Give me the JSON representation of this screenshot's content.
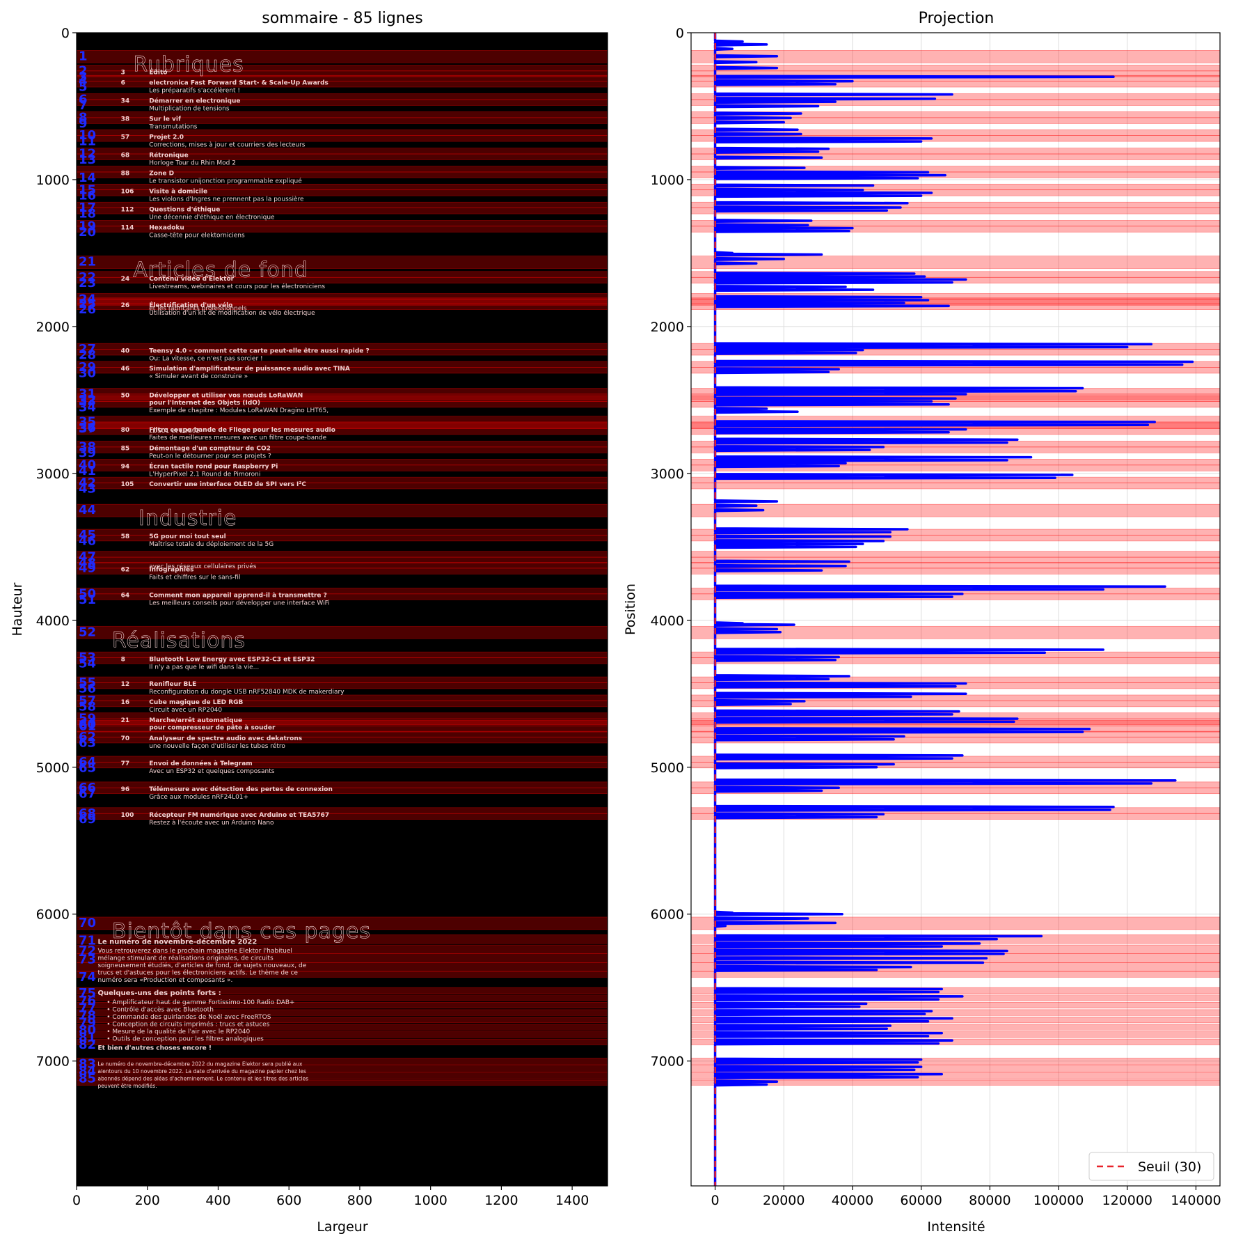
{
  "figure": {
    "left_title": "sommaire - 85 lignes",
    "right_title": "Projection"
  },
  "colors": {
    "band": "#ff0000",
    "profile": "#0000ff",
    "threshold": "#e8222a",
    "image_background": "#000000",
    "text_on_image": "#f3d2d2",
    "labels": "#1f2bff"
  },
  "chart_data": [
    {
      "type": "heatmap",
      "title": "sommaire - 85 lignes",
      "xlabel": "Largeur",
      "ylabel": "Hauteur",
      "xlim": [
        0,
        1500
      ],
      "ylim": [
        7850,
        0
      ],
      "xticks": [
        0,
        200,
        400,
        600,
        800,
        1000,
        1200,
        1400
      ],
      "yticks": [
        0,
        1000,
        2000,
        3000,
        4000,
        5000,
        6000,
        7000
      ],
      "line_count": 85,
      "headings": [
        {
          "y": 120,
          "x": 120,
          "text": "Rubriques"
        },
        {
          "y": 1520,
          "x": 120,
          "text": "Articles de fond"
        },
        {
          "y": 3210,
          "x": 135,
          "text": "Industrie"
        },
        {
          "y": 4040,
          "x": 60,
          "text": "Réalisations"
        },
        {
          "y": 6020,
          "x": 60,
          "text": "Bientôt dans ces pages"
        }
      ],
      "entries": [
        {
          "y": 230,
          "num": "3",
          "title": "Édito",
          "subtitle": ""
        },
        {
          "y": 300,
          "num": "6",
          "title": "electronica Fast Forward Start- & Scale-Up Awards",
          "subtitle": "Les préparatifs s'accélèrent !"
        },
        {
          "y": 425,
          "num": "34",
          "title": "Démarrer en electronique",
          "subtitle": "Multiplication de tensions"
        },
        {
          "y": 548,
          "num": "38",
          "title": "Sur le vif",
          "subtitle": "Transmutations"
        },
        {
          "y": 670,
          "num": "57",
          "title": "Projet 2.0",
          "subtitle": "Corrections, mises à jour et courriers des lecteurs"
        },
        {
          "y": 795,
          "num": "68",
          "title": "Rétronique",
          "subtitle": "Horloge Tour du Rhin Mod 2"
        },
        {
          "y": 918,
          "num": "88",
          "title": "Zone D",
          "subtitle": "Le transistor unijonction programmable expliqué"
        },
        {
          "y": 1040,
          "num": "106",
          "title": "Visite à domicile",
          "subtitle": "Les violons d'Ingres ne prennent pas la poussière"
        },
        {
          "y": 1163,
          "num": "112",
          "title": "Questions d'éthique",
          "subtitle": "Une décennie d'éthique en électronique"
        },
        {
          "y": 1287,
          "num": "114",
          "title": "Hexadoku",
          "subtitle": "Casse-tête pour elektorniciens"
        },
        {
          "y": 1635,
          "num": "24",
          "title": "Contenu vidéo d'Elektor",
          "subtitle": "Livestreams, webinaires et cours pour les électroniciens"
        },
        {
          "y": 1785,
          "num": "",
          "title": "",
          "subtitle": "et les fabricants professionnels"
        },
        {
          "y": 1815,
          "num": "26",
          "title": "Électrification d'un vélo",
          "subtitle": "Utilisation d'un kit de modification de vélo électrique"
        },
        {
          "y": 2125,
          "num": "40",
          "title": "Teensy 4.0 – comment cette carte peut-elle être aussi rapide ?",
          "subtitle": "Ou: La vitesse, ce n'est pas sorcier !"
        },
        {
          "y": 2248,
          "num": "46",
          "title": "Simulation d'amplificateur de puissance audio avec TINA",
          "subtitle": "« Simuler avant de construire »"
        },
        {
          "y": 2430,
          "num": "50",
          "title": "Développer et utiliser vos nœuds LoRaWAN",
          "subtitle": ""
        },
        {
          "y": 2480,
          "num": "",
          "title": "pour l'Internet des Objets (IdO)",
          "subtitle": "Exemple de chapitre : Modules LoRaWAN Dragino LHT65,"
        },
        {
          "y": 2620,
          "num": "",
          "title": "",
          "subtitle": "LDS01 et LDS02"
        },
        {
          "y": 2665,
          "num": "80",
          "title": "Filtre coupe-bande de Fliege pour les mesures audio",
          "subtitle": "Faites de meilleures mesures avec un filtre coupe-bande"
        },
        {
          "y": 2790,
          "num": "85",
          "title": "Démontage d'un compteur de CO2",
          "subtitle": "Peut-on le détourner pour ses projets ?"
        },
        {
          "y": 2913,
          "num": "94",
          "title": "Écran tactile rond pour Raspberry Pi",
          "subtitle": "L'HyperPixel 2.1 Round de Pimoroni"
        },
        {
          "y": 3035,
          "num": "105",
          "title": "Convertir une interface OLED de SPI vers I²C",
          "subtitle": ""
        },
        {
          "y": 3390,
          "num": "58",
          "title": "5G pour moi tout seul",
          "subtitle": "Maîtrise totale du déploiement de la 5G"
        },
        {
          "y": 3540,
          "num": "",
          "title": "",
          "subtitle": "avec les réseaux cellulaires privés"
        },
        {
          "y": 3615,
          "num": "62",
          "title": "Infographies",
          "subtitle": "Faits et chiffres sur le sans-fil"
        },
        {
          "y": 3790,
          "num": "64",
          "title": "Comment mon appareil apprend-il à transmettre ?",
          "subtitle": "Les meilleurs conseils pour développer une interface WiFi"
        },
        {
          "y": 4225,
          "num": "8",
          "title": "Bluetooth Low Energy avec ESP32-C3 et ESP32",
          "subtitle": "Il n'y a pas que le wifi dans la vie..."
        },
        {
          "y": 4395,
          "num": "12",
          "title": "Renifleur BLE",
          "subtitle": "Reconfiguration du dongle USB nRF52840 MDK de makerdiary"
        },
        {
          "y": 4518,
          "num": "16",
          "title": "Cube magique de LED RGB",
          "subtitle": "Circuit avec un RP2040"
        },
        {
          "y": 4640,
          "num": "21",
          "title": "Marche/arrêt automatique",
          "subtitle": ""
        },
        {
          "y": 4690,
          "num": "",
          "title": "pour compresseur de pâte à souder",
          "subtitle": ""
        },
        {
          "y": 4765,
          "num": "70",
          "title": "Analyseur de spectre audio avec dekatrons",
          "subtitle": "une nouvelle façon d'utiliser les tubes rétro"
        },
        {
          "y": 4935,
          "num": "77",
          "title": "Envoi de données à Telegram",
          "subtitle": "Avec un ESP32 et quelques composants"
        },
        {
          "y": 5110,
          "num": "96",
          "title": "Télémesure avec détection des pertes de connexion",
          "subtitle": "Grâce aux modules nRF24L01+"
        },
        {
          "y": 5285,
          "num": "100",
          "title": "Récepteur FM numérique avec Arduino et TEA5767",
          "subtitle": "Restez à l'écoute avec un Arduino Nano"
        }
      ],
      "teaser_title": "Le numéro de novembre-décembre 2022",
      "teaser_text": [
        "Vous retrouverez dans le prochain magazine Elektor l'habituel",
        "mélange stimulant de réalisations originales, de circuits",
        "soigneusement étudiés, d'articles de fond, de sujets nouveaux, de",
        "trucs et d'astuces pour les électroniciens actifs. Le thème de ce",
        "numéro sera «Production et composants »."
      ],
      "highlights_title": "Quelques-uns des points forts :",
      "highlights": [
        "Amplificateur haut de gamme Fortissimo-100 Radio DAB+",
        "Contrôle d'accès avec Bluetooth",
        "Commande des guirlandes de Noël avec FreeRTOS",
        "Conception de circuits imprimés : trucs et astuces",
        "Mesure de la qualité de l'air avec le RP2040",
        "Outils de conception pour les filtres analogiques"
      ],
      "closing": "Et bien d'autres choses encore !",
      "footnote": [
        "Le numéro de novembre-décembre 2022 du magazine Elektor sera publié aux",
        "alentours du 10 novembre 2022. La date d'arrivée du magazine papier chez les",
        "abonnés dépend des aléas d'acheminement. Le contenu et les titres des articles",
        "peuvent être modifiés."
      ]
    },
    {
      "type": "line",
      "title": "Projection",
      "xlabel": "Intensité",
      "ylabel": "Position",
      "xlim": [
        -7000,
        147000
      ],
      "ylim": [
        7850,
        0
      ],
      "xticks": [
        0,
        20000,
        40000,
        60000,
        80000,
        100000,
        120000,
        140000
      ],
      "yticks": [
        0,
        1000,
        2000,
        3000,
        4000,
        5000,
        6000,
        7000
      ],
      "grid": true,
      "legend": "bottom-right",
      "threshold": 30,
      "series": [
        {
          "name": "Seuil (30)",
          "kind": "threshold",
          "value": 30
        }
      ],
      "profile_peaks": [
        [
          60,
          8000
        ],
        [
          80,
          15000
        ],
        [
          110,
          5000
        ],
        [
          160,
          18000
        ],
        [
          200,
          12000
        ],
        [
          240,
          18000
        ],
        [
          300,
          116000
        ],
        [
          330,
          40000
        ],
        [
          350,
          35000
        ],
        [
          420,
          69000
        ],
        [
          450,
          64000
        ],
        [
          470,
          35000
        ],
        [
          500,
          30000
        ],
        [
          550,
          25000
        ],
        [
          580,
          22000
        ],
        [
          610,
          20000
        ],
        [
          660,
          24000
        ],
        [
          690,
          25000
        ],
        [
          720,
          63000
        ],
        [
          740,
          60000
        ],
        [
          790,
          33000
        ],
        [
          810,
          30000
        ],
        [
          850,
          31000
        ],
        [
          920,
          26000
        ],
        [
          950,
          62000
        ],
        [
          970,
          67000
        ],
        [
          990,
          59000
        ],
        [
          1040,
          46000
        ],
        [
          1070,
          43000
        ],
        [
          1090,
          63000
        ],
        [
          1110,
          60000
        ],
        [
          1160,
          56000
        ],
        [
          1190,
          54000
        ],
        [
          1210,
          50000
        ],
        [
          1280,
          28000
        ],
        [
          1310,
          27000
        ],
        [
          1330,
          40000
        ],
        [
          1350,
          39000
        ],
        [
          1500,
          5000
        ],
        [
          1510,
          31000
        ],
        [
          1540,
          20000
        ],
        [
          1570,
          12000
        ],
        [
          1640,
          58000
        ],
        [
          1660,
          61000
        ],
        [
          1680,
          73000
        ],
        [
          1700,
          69000
        ],
        [
          1730,
          38000
        ],
        [
          1750,
          46000
        ],
        [
          1800,
          60000
        ],
        [
          1820,
          62000
        ],
        [
          1840,
          55000
        ],
        [
          1860,
          68000
        ],
        [
          2120,
          127000
        ],
        [
          2140,
          120000
        ],
        [
          2160,
          43000
        ],
        [
          2180,
          41000
        ],
        [
          2240,
          139000
        ],
        [
          2260,
          136000
        ],
        [
          2290,
          36000
        ],
        [
          2310,
          33000
        ],
        [
          2420,
          107000
        ],
        [
          2440,
          105000
        ],
        [
          2460,
          73000
        ],
        [
          2490,
          70000
        ],
        [
          2510,
          63000
        ],
        [
          2530,
          68000
        ],
        [
          2560,
          15000
        ],
        [
          2580,
          24000
        ],
        [
          2650,
          128000
        ],
        [
          2670,
          126000
        ],
        [
          2700,
          73000
        ],
        [
          2720,
          68000
        ],
        [
          2770,
          88000
        ],
        [
          2790,
          85000
        ],
        [
          2820,
          49000
        ],
        [
          2840,
          45000
        ],
        [
          2890,
          92000
        ],
        [
          2910,
          85000
        ],
        [
          2930,
          38000
        ],
        [
          2950,
          36000
        ],
        [
          3010,
          104000
        ],
        [
          3030,
          99000
        ],
        [
          3190,
          18000
        ],
        [
          3220,
          12000
        ],
        [
          3250,
          14000
        ],
        [
          3380,
          56000
        ],
        [
          3400,
          51000
        ],
        [
          3430,
          51000
        ],
        [
          3460,
          49000
        ],
        [
          3480,
          43000
        ],
        [
          3500,
          41000
        ],
        [
          3600,
          39000
        ],
        [
          3630,
          38000
        ],
        [
          3660,
          31000
        ],
        [
          3770,
          131000
        ],
        [
          3790,
          113000
        ],
        [
          3820,
          72000
        ],
        [
          3840,
          69000
        ],
        [
          4020,
          8000
        ],
        [
          4030,
          23000
        ],
        [
          4060,
          18000
        ],
        [
          4080,
          19000
        ],
        [
          4200,
          113000
        ],
        [
          4220,
          96000
        ],
        [
          4250,
          36000
        ],
        [
          4270,
          35000
        ],
        [
          4380,
          39000
        ],
        [
          4400,
          33000
        ],
        [
          4430,
          73000
        ],
        [
          4450,
          70000
        ],
        [
          4500,
          73000
        ],
        [
          4520,
          57000
        ],
        [
          4550,
          26000
        ],
        [
          4570,
          22000
        ],
        [
          4620,
          71000
        ],
        [
          4640,
          69000
        ],
        [
          4670,
          88000
        ],
        [
          4690,
          87000
        ],
        [
          4740,
          109000
        ],
        [
          4760,
          107000
        ],
        [
          4790,
          55000
        ],
        [
          4810,
          52000
        ],
        [
          4920,
          72000
        ],
        [
          4940,
          69000
        ],
        [
          4980,
          52000
        ],
        [
          5000,
          47000
        ],
        [
          5090,
          134000
        ],
        [
          5110,
          127000
        ],
        [
          5140,
          36000
        ],
        [
          5160,
          31000
        ],
        [
          5270,
          116000
        ],
        [
          5290,
          115000
        ],
        [
          5320,
          49000
        ],
        [
          5340,
          47000
        ],
        [
          5990,
          5000
        ],
        [
          6000,
          37000
        ],
        [
          6030,
          27000
        ],
        [
          6060,
          35000
        ],
        [
          6080,
          3000
        ],
        [
          6150,
          95000
        ],
        [
          6170,
          82000
        ],
        [
          6200,
          77000
        ],
        [
          6220,
          66000
        ],
        [
          6250,
          85000
        ],
        [
          6270,
          84000
        ],
        [
          6300,
          79000
        ],
        [
          6330,
          78000
        ],
        [
          6360,
          57000
        ],
        [
          6380,
          47000
        ],
        [
          6510,
          66000
        ],
        [
          6530,
          65000
        ],
        [
          6560,
          72000
        ],
        [
          6580,
          65000
        ],
        [
          6610,
          44000
        ],
        [
          6630,
          42000
        ],
        [
          6660,
          63000
        ],
        [
          6680,
          61000
        ],
        [
          6710,
          69000
        ],
        [
          6730,
          62000
        ],
        [
          6760,
          51000
        ],
        [
          6780,
          50000
        ],
        [
          6810,
          66000
        ],
        [
          6830,
          62000
        ],
        [
          6860,
          69000
        ],
        [
          6880,
          65000
        ],
        [
          6990,
          60000
        ],
        [
          7010,
          59000
        ],
        [
          7040,
          60000
        ],
        [
          7060,
          58000
        ],
        [
          7090,
          66000
        ],
        [
          7110,
          59000
        ],
        [
          7140,
          18000
        ],
        [
          7160,
          15000
        ]
      ]
    }
  ]
}
